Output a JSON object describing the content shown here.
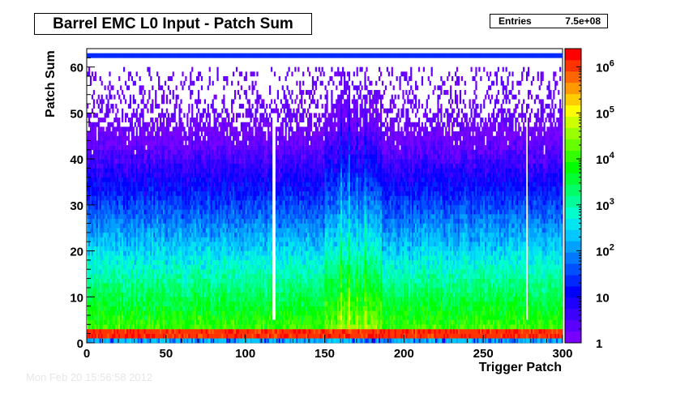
{
  "footer_timestamp": "Mon Feb 20 15:56:58 2012",
  "stats": {
    "key": "Entries",
    "value": "7.5e+08"
  },
  "chart_data": {
    "type": "heatmap",
    "title": "Barrel EMC L0 Input - Patch Sum",
    "xlabel": "Trigger Patch",
    "ylabel": "Patch Sum",
    "xlim": [
      0,
      300
    ],
    "ylim": [
      0,
      64
    ],
    "x_ticks": [
      0,
      50,
      100,
      150,
      200,
      250,
      300
    ],
    "y_ticks": [
      0,
      10,
      20,
      30,
      40,
      50,
      60
    ],
    "z_scale": "log",
    "zlim": [
      1,
      2500000
    ],
    "z_tick_labels": [
      "1",
      "10",
      "10^2",
      "10^3",
      "10^4",
      "10^5",
      "10^6"
    ],
    "palette": [
      "#7800ff",
      "#5a00ff",
      "#3c00ff",
      "#1e00ff",
      "#0000ff",
      "#0028ff",
      "#0050ff",
      "#0078ff",
      "#00a0ff",
      "#00c8ff",
      "#00e6f0",
      "#00ffcc",
      "#00ff99",
      "#00ff66",
      "#00ff33",
      "#00ff00",
      "#33ff00",
      "#66ff00",
      "#99ff00",
      "#ccff00",
      "#ffff00",
      "#ffcc00",
      "#ff9900",
      "#ff6600",
      "#ff3300",
      "#ff0000"
    ],
    "summary": {
      "peak_band_y": [
        1,
        2
      ],
      "peak_band_counts": "10^6",
      "overflow_row_y": 62,
      "low_sum_counts_y0_5": "10^4",
      "counts_y_10": "10^3",
      "counts_y_20": "10^2",
      "counts_y_30": "10",
      "counts_y_45_60": "1 (sparse)",
      "bright_columns_x": [
        160,
        165,
        170,
        175
      ],
      "empty_columns_x": [
        117,
        118,
        277
      ]
    }
  }
}
